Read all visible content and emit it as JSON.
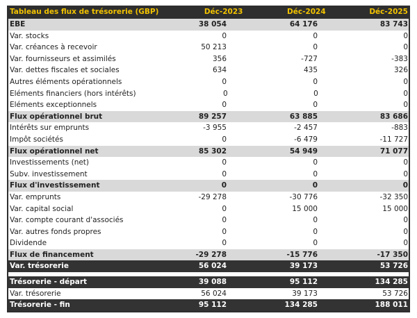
{
  "table": {
    "title": "Tableau des flux de trésorerie (GBP)",
    "columns": [
      "Déc-2023",
      "Déc-2024",
      "Déc-2025"
    ],
    "colors": {
      "header_bg": "#2e2e2e",
      "header_text": "#f2c200",
      "subtotal_bg": "#d9d9d9",
      "total_bg": "#333333"
    },
    "rows": [
      {
        "label": "EBE",
        "values": [
          "38 054",
          "64 176",
          "83 743"
        ],
        "style": "sub"
      },
      {
        "label": "Var. stocks",
        "values": [
          "0",
          "0",
          "0"
        ],
        "style": ""
      },
      {
        "label": "Var. créances à recevoir",
        "values": [
          "50 213",
          "0",
          "0"
        ],
        "style": ""
      },
      {
        "label": "Var. fournisseurs et assimilés",
        "values": [
          "356",
          "-727",
          "-383"
        ],
        "style": ""
      },
      {
        "label": "Var. dettes fiscales et sociales",
        "values": [
          "634",
          "435",
          "326"
        ],
        "style": ""
      },
      {
        "label": "Autres éléments opérationnels",
        "values": [
          "0",
          "0",
          "0"
        ],
        "style": ""
      },
      {
        "label": "Eléments financiers (hors intérêts)",
        "values": [
          "0",
          "0",
          "0"
        ],
        "style": ""
      },
      {
        "label": "Eléments exceptionnels",
        "values": [
          "0",
          "0",
          "0"
        ],
        "style": ""
      },
      {
        "label": "Flux opérationnel brut",
        "values": [
          "89 257",
          "63 885",
          "83 686"
        ],
        "style": "sub"
      },
      {
        "label": "Intérêts sur emprunts",
        "values": [
          "-3 955",
          "-2 457",
          "-883"
        ],
        "style": ""
      },
      {
        "label": "Impôt sociétés",
        "values": [
          "0",
          "-6 479",
          "-11 727"
        ],
        "style": ""
      },
      {
        "label": "Flux opérationnel net",
        "values": [
          "85 302",
          "54 949",
          "71 077"
        ],
        "style": "sub"
      },
      {
        "label": "Investissements (net)",
        "values": [
          "0",
          "0",
          "0"
        ],
        "style": ""
      },
      {
        "label": "Subv. investissement",
        "values": [
          "0",
          "0",
          "0"
        ],
        "style": ""
      },
      {
        "label": "Flux d'investissement",
        "values": [
          "0",
          "0",
          "0"
        ],
        "style": "sub"
      },
      {
        "label": "Var. emprunts",
        "values": [
          "-29 278",
          "-30 776",
          "-32 350"
        ],
        "style": ""
      },
      {
        "label": "Var. capital social",
        "values": [
          "0",
          "15 000",
          "15 000"
        ],
        "style": ""
      },
      {
        "label": "Var. compte courant d'associés",
        "values": [
          "0",
          "0",
          "0"
        ],
        "style": ""
      },
      {
        "label": "Var. autres fonds propres",
        "values": [
          "0",
          "0",
          "0"
        ],
        "style": ""
      },
      {
        "label": "Dividende",
        "values": [
          "0",
          "0",
          "0"
        ],
        "style": ""
      },
      {
        "label": "Flux de financement",
        "values": [
          "-29 278",
          "-15 776",
          "-17 350"
        ],
        "style": "sub"
      },
      {
        "label": "Var. trésorerie",
        "values": [
          "56 024",
          "39 173",
          "53 726"
        ],
        "style": "dark"
      }
    ],
    "summary": [
      {
        "label": "Trésorerie - départ",
        "values": [
          "39 088",
          "95 112",
          "134 285"
        ],
        "style": "dark"
      },
      {
        "label": "Var. trésorerie",
        "values": [
          "56 024",
          "39 173",
          "53 726"
        ],
        "style": ""
      },
      {
        "label": "Trésorerie - fin",
        "values": [
          "95 112",
          "134 285",
          "188 011"
        ],
        "style": "dark"
      }
    ]
  }
}
